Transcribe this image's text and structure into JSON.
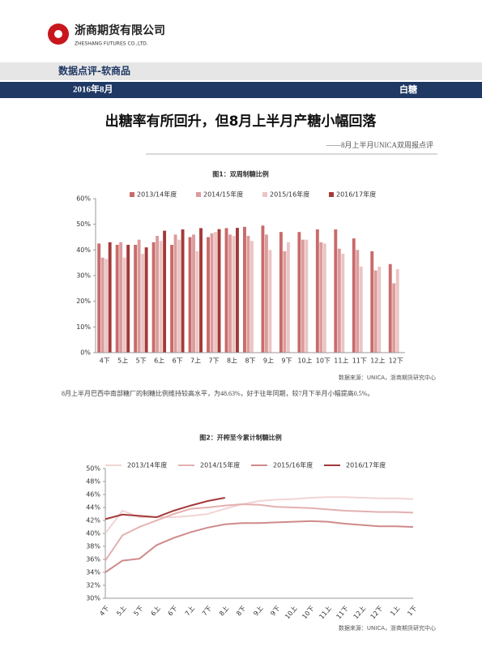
{
  "header": {
    "company": "浙商期货有限公司",
    "company_en": "ZHESHANG FUTURES CO.,LTD.",
    "section": "数据点评-软商品",
    "date": "2016年8月",
    "product": "白糖"
  },
  "title": "出糖率有所回升，但8月上半月产糖小幅回落",
  "subtitle": "——8月上半月UNICA双周报点评",
  "paragraph": "8月上半月巴西中南部糖厂的制糖比例维持较高水平，为48.63%，好于往年同期，较7月下半月小幅提高0.5%。",
  "chart_data": [
    {
      "type": "bar",
      "title": "图1：双周制糖比例",
      "source": "数据来源：UNICA，浙商期货研究中心",
      "categories": [
        "4下",
        "5上",
        "5下",
        "6上",
        "6下",
        "7上",
        "7下",
        "8上",
        "8下",
        "9上",
        "9下",
        "10上",
        "10下",
        "11上",
        "11下",
        "12上",
        "12下"
      ],
      "series": [
        {
          "name": "2013/14年度",
          "color": "#c96b6b",
          "values": [
            42.5,
            42,
            42,
            43,
            42,
            45,
            45,
            48.5,
            49,
            49.5,
            47,
            47,
            48,
            48,
            44.5,
            39.5,
            34.5
          ]
        },
        {
          "name": "2014/15年度",
          "color": "#dc9c9c",
          "values": [
            37,
            43,
            44,
            45.5,
            46,
            46,
            46.5,
            46,
            45.5,
            46,
            39.5,
            44,
            43,
            40.5,
            40,
            32,
            27
          ]
        },
        {
          "name": "2015/16年度",
          "color": "#ecc4c4",
          "values": [
            36.5,
            37,
            38.5,
            43.5,
            44,
            39.5,
            47,
            45.5,
            43.5,
            40,
            43,
            44,
            42.5,
            38.5,
            33.5,
            33.5,
            32.5
          ]
        },
        {
          "name": "2016/17年度",
          "color": "#a43a3a",
          "values": [
            43,
            42,
            41,
            47.5,
            48,
            48.5,
            48.1,
            48.6,
            null,
            null,
            null,
            null,
            null,
            null,
            null,
            null,
            null
          ]
        }
      ],
      "ylim": [
        0,
        60
      ],
      "yticks": [
        {
          "value": 0,
          "label": "0%"
        },
        {
          "value": 10,
          "label": "10%"
        },
        {
          "value": 20,
          "label": "20%"
        },
        {
          "value": 30,
          "label": "30%"
        },
        {
          "value": 40,
          "label": "40%"
        },
        {
          "value": 50,
          "label": "50%"
        },
        {
          "value": 60,
          "label": "60%"
        }
      ],
      "legend": "top"
    },
    {
      "type": "line",
      "title": "图2：开榨至今累计制糖比例",
      "source": "数据来源：UNICA，浙商期货研究中心",
      "categories": [
        "4下",
        "5上",
        "5下",
        "6上",
        "6下",
        "7上",
        "7下",
        "8上",
        "8下",
        "9上",
        "9下",
        "10上",
        "10下",
        "11上",
        "11下",
        "12上",
        "12下",
        "1上",
        "1下"
      ],
      "series": [
        {
          "name": "2013/14年度",
          "color": "#f2d4d4",
          "values": [
            40,
            43.5,
            42.5,
            42.5,
            42.5,
            42.7,
            43,
            43.8,
            44.5,
            45,
            45.2,
            45.3,
            45.5,
            45.6,
            45.6,
            45.5,
            45.4,
            45.4,
            45.3
          ]
        },
        {
          "name": "2014/15年度",
          "color": "#e4b0b0",
          "values": [
            35.8,
            39.7,
            41,
            42,
            43,
            43.8,
            44,
            44.3,
            44.5,
            44.4,
            44.1,
            44,
            43.9,
            43.7,
            43.5,
            43.4,
            43.3,
            43.3,
            43.2
          ]
        },
        {
          "name": "2015/16年度",
          "color": "#d08a8a",
          "values": [
            34,
            35.8,
            36.1,
            38.2,
            39.3,
            40.2,
            40.9,
            41.4,
            41.6,
            41.6,
            41.7,
            41.8,
            41.9,
            41.8,
            41.5,
            41.3,
            41.1,
            41.1,
            41
          ]
        },
        {
          "name": "2016/17年度",
          "color": "#a43a3a",
          "values": [
            42.2,
            42.9,
            42.7,
            42.5,
            43.5,
            44.3,
            45,
            45.5,
            null,
            null,
            null,
            null,
            null,
            null,
            null,
            null,
            null,
            null,
            null
          ]
        }
      ],
      "ylim": [
        30,
        50
      ],
      "yticks": [
        {
          "value": 30,
          "label": "30%"
        },
        {
          "value": 32,
          "label": "32%"
        },
        {
          "value": 34,
          "label": "34%"
        },
        {
          "value": 36,
          "label": "36%"
        },
        {
          "value": 38,
          "label": "38%"
        },
        {
          "value": 40,
          "label": "40%"
        },
        {
          "value": 42,
          "label": "42%"
        },
        {
          "value": 44,
          "label": "44%"
        },
        {
          "value": 46,
          "label": "46%"
        },
        {
          "value": 48,
          "label": "48%"
        },
        {
          "value": 50,
          "label": "50%"
        }
      ],
      "legend": "top"
    }
  ]
}
